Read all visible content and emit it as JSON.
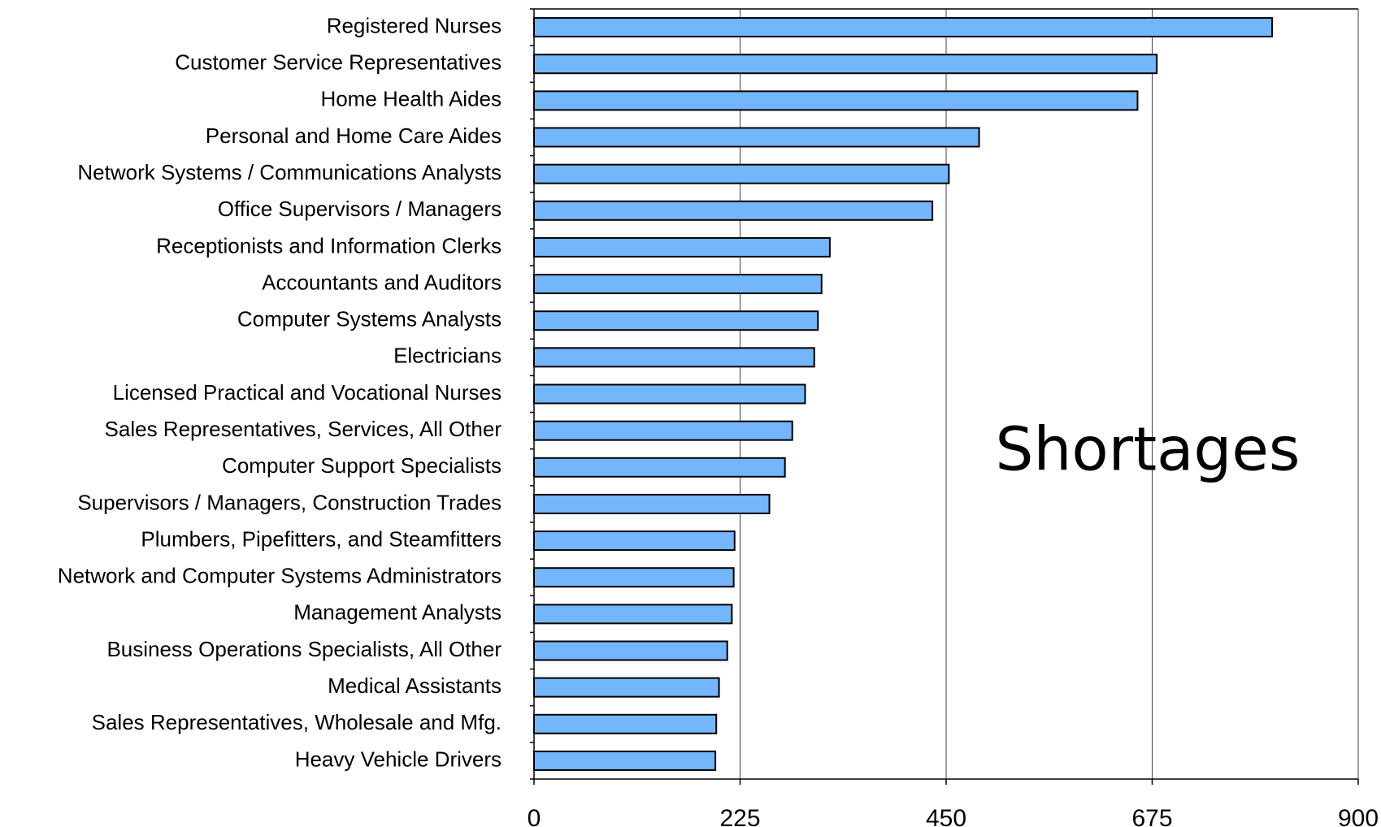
{
  "chart_data": {
    "type": "barh",
    "annotation": "Shortages",
    "categories": [
      "Registered Nurses",
      "Customer Service Representatives",
      "Home Health Aides",
      "Personal and Home Care Aides",
      "Network Systems / Communications Analysts",
      "Office Supervisors / Managers",
      "Receptionists and Information Clerks",
      "Accountants and Auditors",
      "Computer Systems Analysts",
      "Electricians",
      "Licensed Practical and Vocational Nurses",
      "Sales Representatives, Services, All Other",
      "Computer Support Specialists",
      "Supervisors / Managers, Construction Trades",
      "Plumbers, Pipefitters, and Steamfitters",
      "Network and Computer Systems Administrators",
      "Management Analysts",
      "Business Operations Specialists, All Other",
      "Medical Assistants",
      "Sales Representatives, Wholesale and Mfg.",
      "Heavy Vehicle Drivers"
    ],
    "values": [
      806,
      680,
      659,
      486,
      453,
      435,
      323,
      314,
      310,
      306,
      296,
      282,
      274,
      257,
      219,
      218,
      216,
      211,
      202,
      199,
      198
    ],
    "color": "#74b6fc",
    "xlim": [
      0,
      900
    ],
    "xticks": [
      0,
      225,
      450,
      675,
      900
    ],
    "grid": true
  }
}
